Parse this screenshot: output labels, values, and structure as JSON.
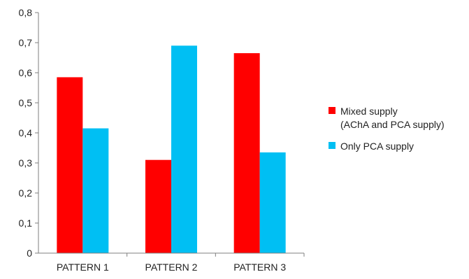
{
  "chart_data": {
    "type": "bar",
    "categories": [
      "PATTERN 1",
      "PATTERN 2",
      "PATTERN 3"
    ],
    "series": [
      {
        "name": "Mixed supply",
        "name_line2": "(AChA and PCA supply)",
        "color": "#ff0000",
        "values": [
          0.585,
          0.31,
          0.665
        ]
      },
      {
        "name": "Only PCA supply",
        "color": "#00bff3",
        "values": [
          0.415,
          0.69,
          0.335
        ]
      }
    ],
    "y_ticks": [
      "0",
      "0,1",
      "0,2",
      "0,3",
      "0,4",
      "0,5",
      "0,6",
      "0,7",
      "0,8"
    ],
    "ylim": [
      0,
      0.8
    ],
    "title": "",
    "xlabel": "",
    "ylabel": "",
    "legend_position": "right",
    "grid": false
  }
}
